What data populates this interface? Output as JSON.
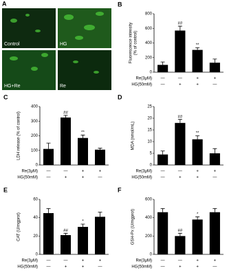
{
  "image_panel": {
    "label": "A",
    "captions": [
      "Control",
      "HG",
      "HG+Re",
      "Re"
    ]
  },
  "chart_data": [
    {
      "type": "bar",
      "panel": "B",
      "ylabel": "Fluorescence intensity\n(% of control)",
      "ylim": [
        0,
        800
      ],
      "yticks": [
        0,
        200,
        400,
        600,
        800
      ],
      "values": [
        100,
        570,
        305,
        130
      ],
      "errors": [
        40,
        60,
        30,
        50
      ],
      "annotations": [
        null,
        "##",
        "**",
        null
      ],
      "color": "#000000",
      "conditions": [
        {
          "name": "Re(3μM)",
          "marks": [
            "—",
            "—",
            "+",
            "+"
          ]
        },
        {
          "name": "HG(50mM)",
          "marks": [
            "—",
            "+",
            "+",
            "—"
          ]
        }
      ]
    },
    {
      "type": "bar",
      "panel": "C",
      "ylabel": "LDH release (% of control)",
      "ylim": [
        0,
        400
      ],
      "yticks": [
        0,
        100,
        200,
        300,
        400
      ],
      "values": [
        110,
        325,
        185,
        105
      ],
      "errors": [
        40,
        15,
        20,
        10
      ],
      "annotations": [
        null,
        "##",
        "**",
        null
      ],
      "color": "#000000",
      "conditions": [
        {
          "name": "Re(3μM)",
          "marks": [
            "—",
            "—",
            "+",
            "+"
          ]
        },
        {
          "name": "HG(50mM)",
          "marks": [
            "—",
            "+",
            "+",
            "—"
          ]
        }
      ]
    },
    {
      "type": "bar",
      "panel": "D",
      "ylabel": "MDA (nmol/mL)",
      "ylim": [
        0,
        25
      ],
      "yticks": [
        0,
        5,
        10,
        15,
        20,
        25
      ],
      "values": [
        4.5,
        18,
        11,
        5
      ],
      "errors": [
        1.5,
        1.5,
        1.5,
        2
      ],
      "annotations": [
        null,
        "##",
        "**",
        null
      ],
      "color": "#000000",
      "conditions": [
        {
          "name": "Re(3μM)",
          "marks": [
            "—",
            "—",
            "+",
            "+"
          ]
        },
        {
          "name": "HG(50mM)",
          "marks": [
            "—",
            "+",
            "+",
            "—"
          ]
        }
      ]
    },
    {
      "type": "bar",
      "panel": "E",
      "ylabel": "CAT (U/mgprot)",
      "ylim": [
        0,
        60
      ],
      "yticks": [
        0,
        20,
        40,
        60
      ],
      "values": [
        45,
        21,
        30,
        41
      ],
      "errors": [
        5,
        2,
        3,
        5
      ],
      "annotations": [
        null,
        "##",
        "*",
        null
      ],
      "color": "#000000",
      "conditions": [
        {
          "name": "Re(3μM)",
          "marks": [
            "—",
            "—",
            "+",
            "+"
          ]
        },
        {
          "name": "HG(50mM)",
          "marks": [
            "—",
            "+",
            "+",
            "—"
          ]
        }
      ]
    },
    {
      "type": "bar",
      "panel": "F",
      "ylabel": "GSH-Px (U/mgprot)",
      "ylim": [
        0,
        600
      ],
      "yticks": [
        0,
        200,
        400,
        600
      ],
      "values": [
        460,
        200,
        380,
        460
      ],
      "errors": [
        40,
        30,
        30,
        40
      ],
      "annotations": [
        null,
        "##",
        "*",
        null
      ],
      "color": "#000000",
      "conditions": [
        {
          "name": "Re(3μM)",
          "marks": [
            "—",
            "—",
            "+",
            "+"
          ]
        },
        {
          "name": "HG(50mM)",
          "marks": [
            "—",
            "+",
            "+",
            "—"
          ]
        }
      ]
    }
  ]
}
